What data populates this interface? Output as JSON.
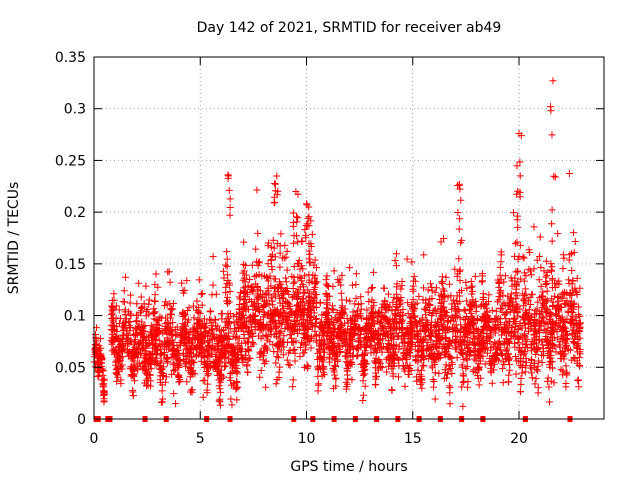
{
  "chart_data": {
    "type": "scatter",
    "title": "Day 142 of 2021, SRMTID for receiver ab49",
    "xlabel": "GPS time / hours",
    "ylabel": "SRMTID / TECUs",
    "xlim": [
      0,
      24
    ],
    "ylim": [
      0,
      0.35
    ],
    "xticks": [
      "0",
      "5",
      "10",
      "15",
      "20"
    ],
    "xtick_values": [
      0,
      5,
      10,
      15,
      20
    ],
    "yticks": [
      "0",
      "0.05",
      "0.1",
      "0.15",
      "0.2",
      "0.25",
      "0.3",
      "0.35"
    ],
    "ytick_values": [
      0,
      0.05,
      0.1,
      0.15,
      0.2,
      0.25,
      0.3,
      0.35
    ],
    "grid": true,
    "marker": "+",
    "series": [
      {
        "name": "SRMTID",
        "color": "#ff0000",
        "points_note": "dense scatter of several thousand points, typical range 0.03-0.15",
        "profile": [
          {
            "t_start": 0.0,
            "t_end": 0.5,
            "center": 0.05,
            "spread": 0.015
          },
          {
            "t_start": 0.8,
            "t_end": 2.0,
            "center": 0.07,
            "spread": 0.03
          },
          {
            "t_start": 2.0,
            "t_end": 5.0,
            "center": 0.07,
            "spread": 0.035
          },
          {
            "t_start": 5.0,
            "t_end": 7.0,
            "center": 0.07,
            "spread": 0.04
          },
          {
            "t_start": 7.0,
            "t_end": 10.5,
            "center": 0.1,
            "spread": 0.05
          },
          {
            "t_start": 10.5,
            "t_end": 14.0,
            "center": 0.08,
            "spread": 0.035
          },
          {
            "t_start": 14.0,
            "t_end": 19.0,
            "center": 0.08,
            "spread": 0.04
          },
          {
            "t_start": 19.0,
            "t_end": 22.9,
            "center": 0.09,
            "spread": 0.05
          }
        ],
        "peaks": [
          {
            "x": 6.3,
            "y": 0.236
          },
          {
            "x": 8.6,
            "y": 0.235
          },
          {
            "x": 9.5,
            "y": 0.22
          },
          {
            "x": 10.0,
            "y": 0.208
          },
          {
            "x": 17.2,
            "y": 0.227
          },
          {
            "x": 20.0,
            "y": 0.276
          },
          {
            "x": 21.6,
            "y": 0.327
          }
        ]
      }
    ],
    "gap_markers_x": [
      0.1,
      0.2,
      0.65,
      0.75,
      2.4,
      3.4,
      5.3,
      6.4,
      9.4,
      10.3,
      11.3,
      12.3,
      13.3,
      14.3,
      15.3,
      16.3,
      17.3,
      18.3,
      20.3,
      22.4
    ]
  }
}
